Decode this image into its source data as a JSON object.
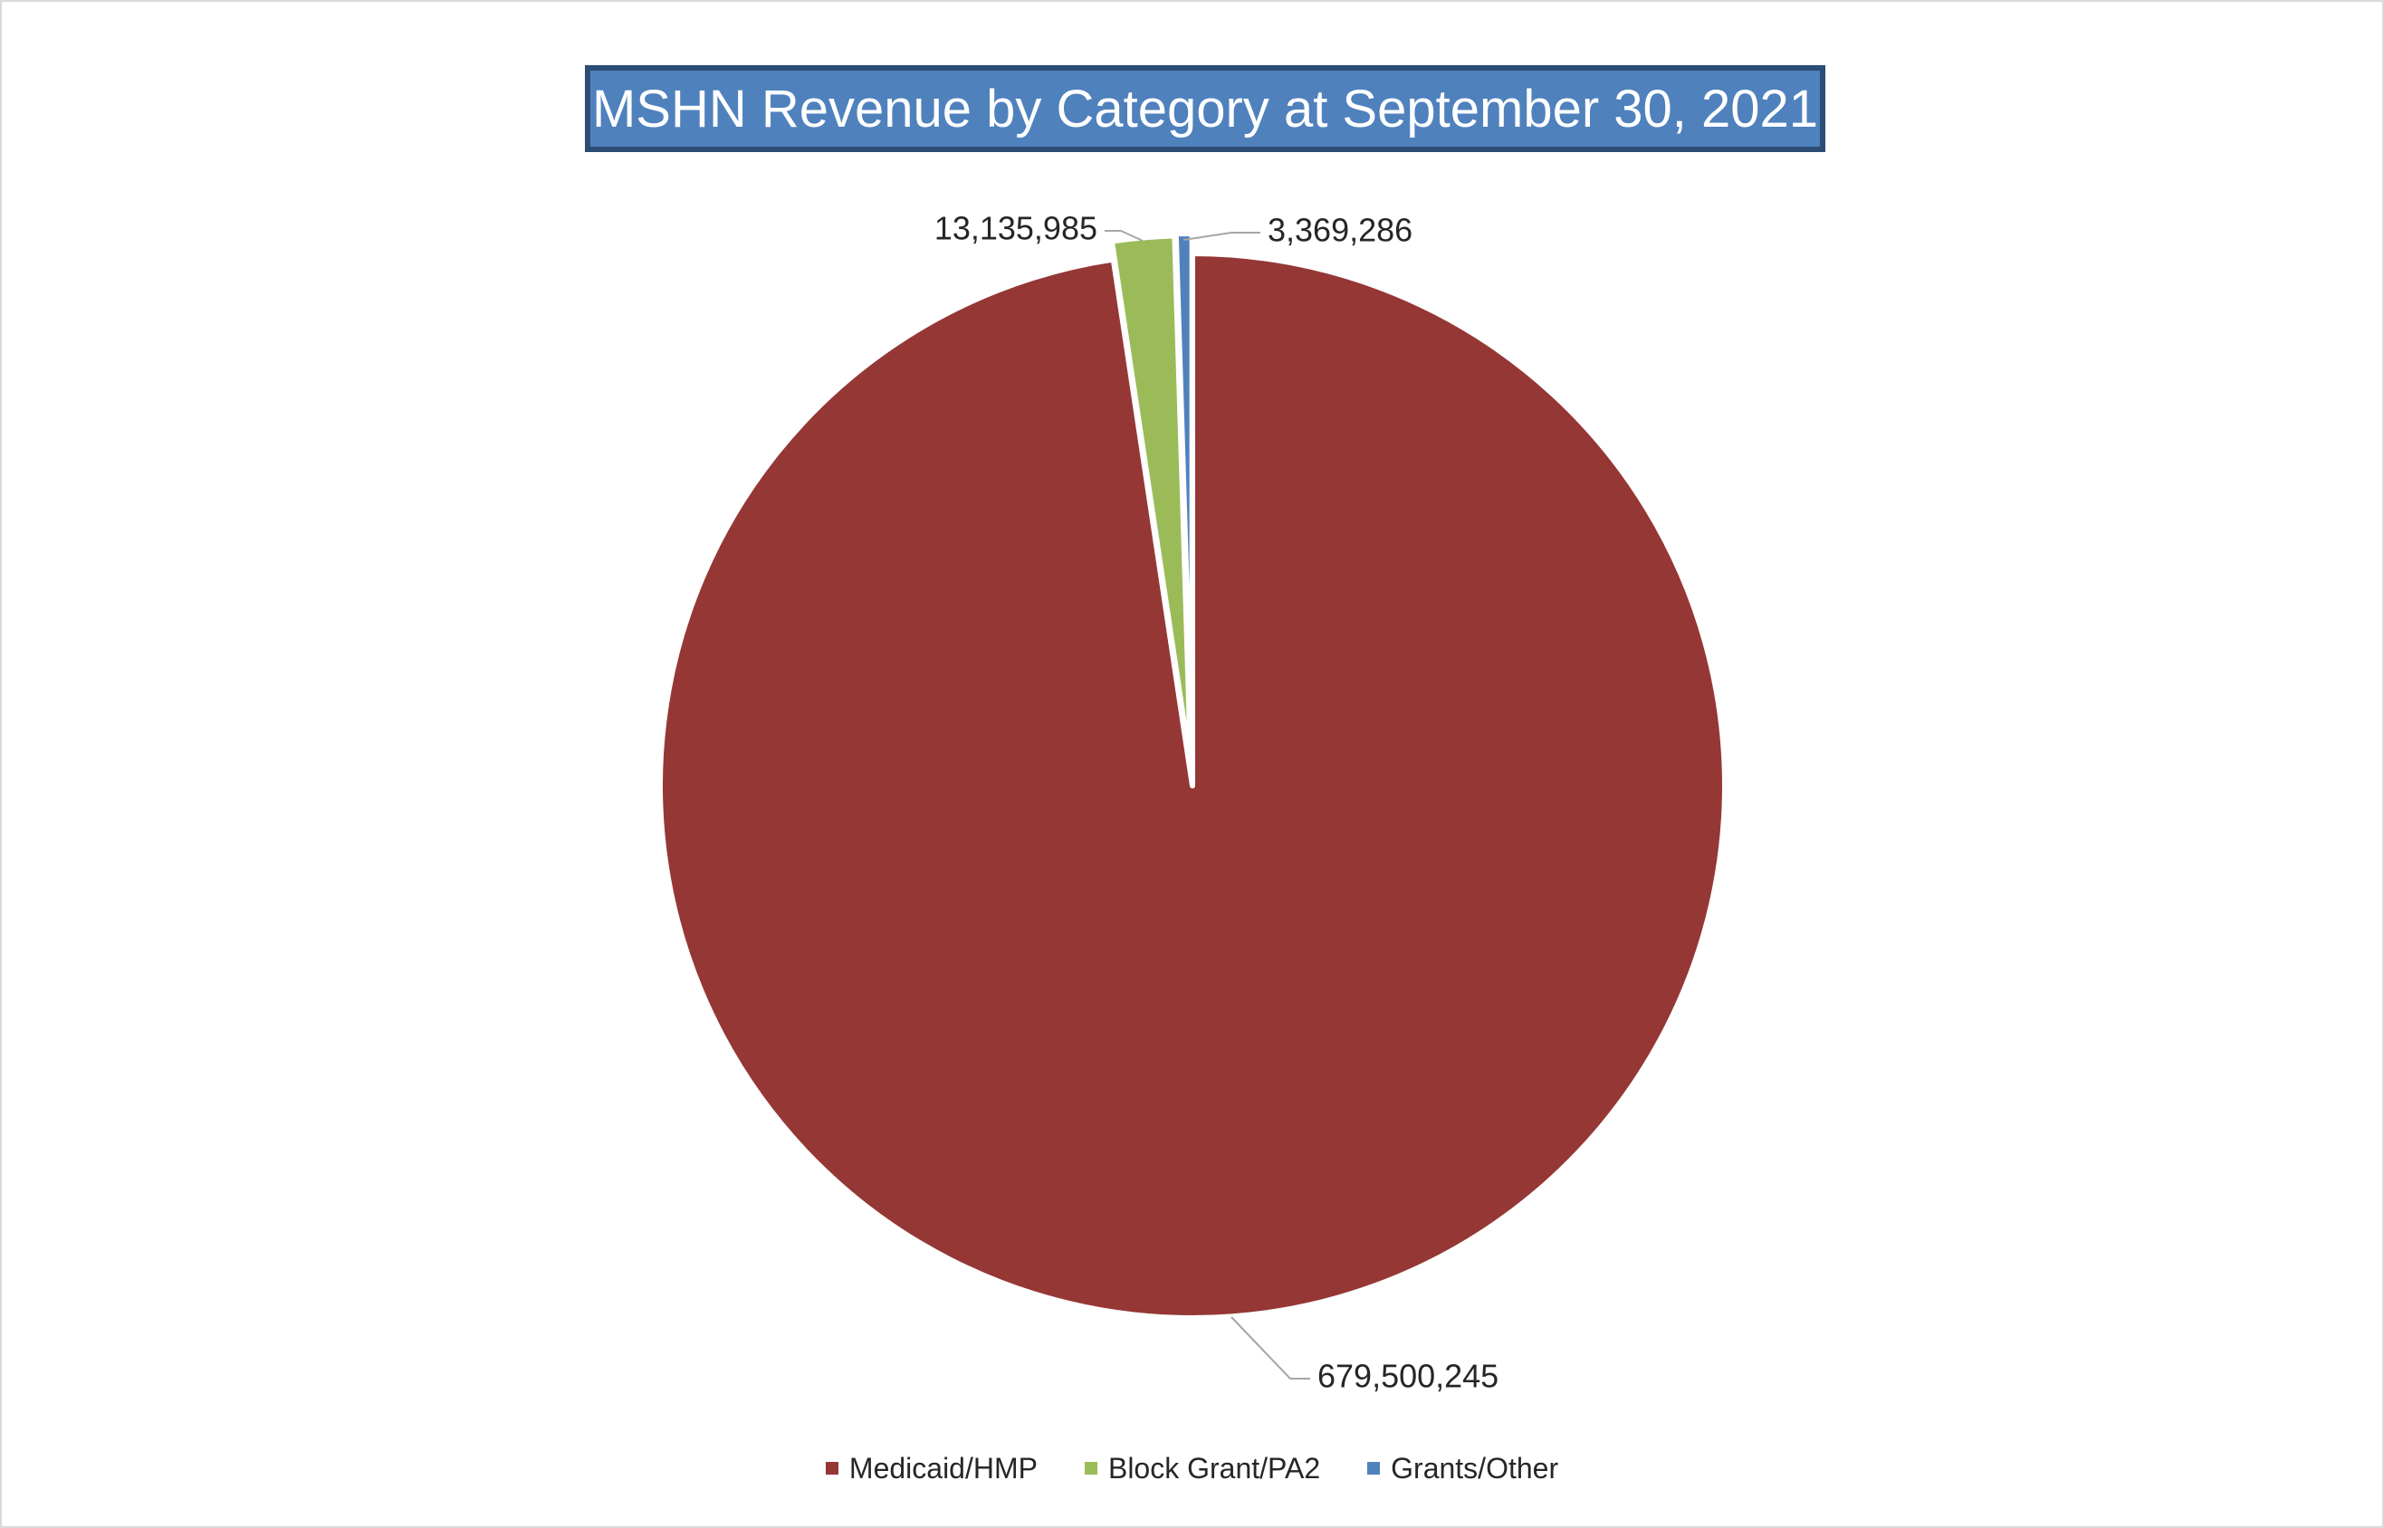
{
  "chart_data": {
    "type": "pie",
    "title": "MSHN Revenue by Category at September 30, 2021",
    "slices": [
      {
        "label": "Medicaid/HMP",
        "value": 679500245,
        "value_label": "679,500,245",
        "color": "#953735"
      },
      {
        "label": "Block Grant/PA2",
        "value": 13135985,
        "value_label": "13,135,985",
        "color": "#9bbb59"
      },
      {
        "label": "Grants/Other",
        "value": 3369286,
        "value_label": "3,369,286",
        "color": "#4f81bd"
      }
    ],
    "legend_position": "bottom",
    "start_angle": "12 o'clock",
    "direction": "clockwise"
  }
}
